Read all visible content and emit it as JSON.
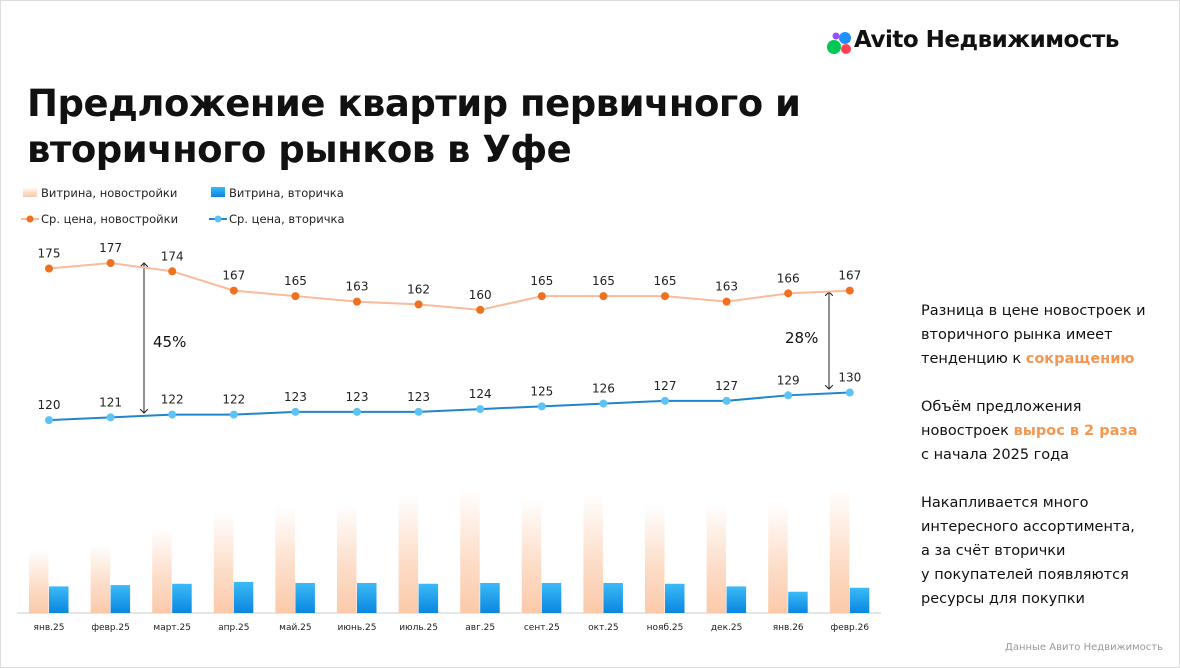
{
  "brand": "Avito Недвижимость",
  "title_lines": [
    "Предложение квартир первичного и",
    "вторичного рынков в Уфе"
  ],
  "chart_data": {
    "type": "combo",
    "categories": [
      "янв.25",
      "февр.25",
      "март.25",
      "апр.25",
      "май.25",
      "июнь.25",
      "июль.25",
      "авг.25",
      "сент.25",
      "окт.25",
      "нояб.25",
      "дек.25",
      "янв.26",
      "февр.26"
    ],
    "series": [
      {
        "name": "Витрина, новостройки",
        "type": "bar",
        "axis": "y2",
        "color": "#fcd3b8",
        "values": [
          24,
          26,
          32,
          38,
          40,
          41,
          45,
          47,
          43,
          45,
          41,
          41,
          41,
          47
        ]
      },
      {
        "name": "Витрина, вторичка",
        "type": "bar",
        "axis": "y2",
        "color": "#1a96e6",
        "values": [
          10,
          10.5,
          11,
          11.7,
          11.3,
          11.3,
          11,
          11.3,
          11.3,
          11.3,
          11,
          10,
          8,
          9.5
        ]
      },
      {
        "name": "Ср. цена, новостройки",
        "type": "line",
        "color": "#f07020",
        "line_color": "#f9bb9c",
        "values": [
          175,
          177,
          174,
          167,
          165,
          163,
          162,
          160,
          165,
          165,
          165,
          163,
          166,
          167
        ]
      },
      {
        "name": "Ср. цена, вторичка",
        "type": "line",
        "color": "#5cc3f5",
        "line_color": "#1f86cc",
        "values": [
          120,
          121,
          122,
          122,
          123,
          123,
          123,
          124,
          125,
          126,
          127,
          127,
          129,
          130
        ]
      }
    ],
    "ylim": [
      50,
      185
    ],
    "y2lim": [
      0,
      140
    ],
    "annotations": [
      "45%",
      "28%"
    ]
  },
  "notes": [
    [
      [
        {
          "text": "Разница в цене новостроек и"
        }
      ],
      [
        {
          "text": "вторичного рынка имеет"
        }
      ],
      [
        {
          "text": "тенденцию к "
        },
        {
          "text": "сокращению",
          "color": "#f7964f"
        }
      ]
    ],
    [
      [
        {
          "text": "Объём предложения"
        }
      ],
      [
        {
          "text": "новостроек "
        },
        {
          "text": "вырос в 2 раза",
          "color": "#f7964f"
        }
      ],
      [
        {
          "text": "с начала 2025 года"
        }
      ]
    ],
    [
      [
        {
          "text": "Накапливается много"
        }
      ],
      [
        {
          "text": "интересного ассортимента,"
        }
      ],
      [
        {
          "text": "а за счёт вторички"
        }
      ],
      [
        {
          "text": "у покупателей появляются"
        }
      ],
      [
        {
          "text": "ресурсы для покупки"
        }
      ]
    ]
  ],
  "footer": "Данные Авито Недвижимость"
}
